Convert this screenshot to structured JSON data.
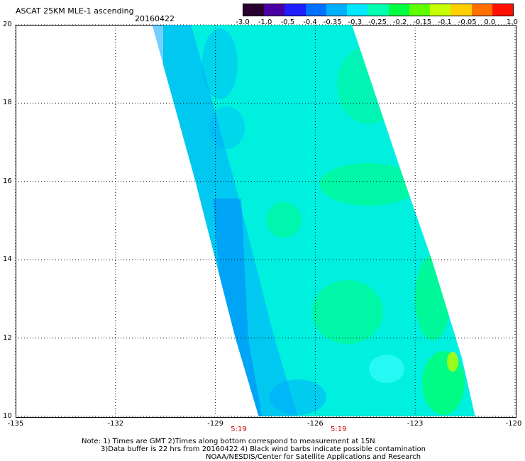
{
  "header": {
    "title": "ASCAT 25KM MLE-1 ascending",
    "date": "20160422"
  },
  "colorbar": {
    "labels": [
      "-3.0",
      "-1.0",
      "-0.5",
      "-0.4",
      "-0.35",
      "-0.3",
      "-0.25",
      "-0.2",
      "-0.15",
      "-0.1",
      "-0.05",
      "0.0",
      "1.0"
    ],
    "colors": [
      "#2a0030",
      "#4a00a0",
      "#1e1eff",
      "#0070ff",
      "#00b0ff",
      "#00e8ff",
      "#00ffb0",
      "#00ff40",
      "#60ff00",
      "#c8ff00",
      "#ffd000",
      "#ff7000",
      "#ff1000"
    ]
  },
  "map": {
    "lon_labels": [
      "-135",
      "-132",
      "-129",
      "-126",
      "-123",
      "-120"
    ],
    "lat_labels": [
      "20",
      "18",
      "16",
      "14",
      "12",
      "10"
    ],
    "lon_range": [
      -135,
      -120
    ],
    "lat_range": [
      10,
      20
    ],
    "grid": "dotted",
    "times": [
      "5:19",
      "5:19"
    ],
    "time_positions_lon": [
      -128.3,
      -125.3
    ],
    "swath": {
      "left_edge": [
        [
          -130.9,
          20.0
        ],
        [
          -129.6,
          16.0
        ],
        [
          -128.4,
          12.0
        ],
        [
          -127.7,
          10.0
        ]
      ],
      "right_edge": [
        [
          -124.9,
          20.0
        ],
        [
          -123.4,
          16.2
        ],
        [
          -122.5,
          14.0
        ],
        [
          -121.6,
          11.5
        ],
        [
          -121.2,
          10.0
        ]
      ]
    },
    "swath_colors": {
      "background": "#00f0e0",
      "edge_blue": "#00a8ff",
      "dark_blue": "#0060ff",
      "green": "#00ff60",
      "yellow": "#c0ff00"
    }
  },
  "notes": {
    "line1": "Note: 1) Times are GMT 2)Times along bottom correspond to measurement at 15N",
    "line2": "3)Data buffer is 22 hrs from 20160422 4) Black wind barbs indicate possible contamination",
    "line3": "NOAA/NESDIS/Center for Satellite Applications and Research"
  }
}
